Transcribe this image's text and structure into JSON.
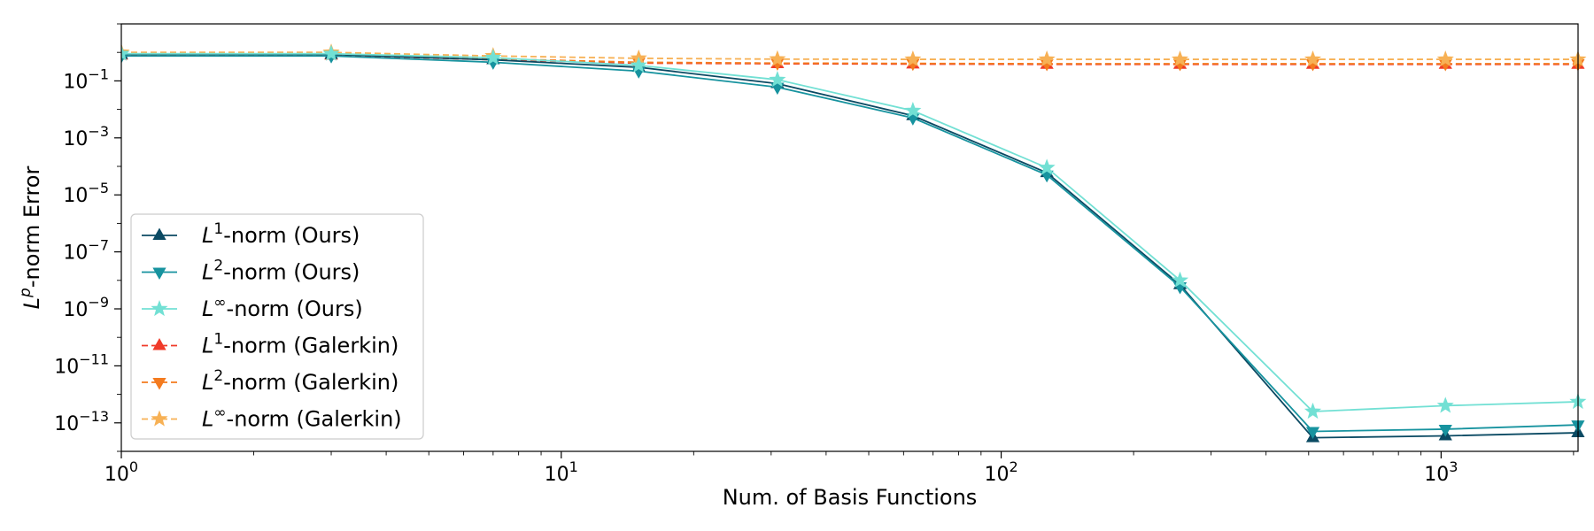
{
  "chart_data": {
    "type": "line",
    "title": "",
    "xlabel": "Num. of Basis Functions",
    "ylabel": {
      "base": "L",
      "sup": "p",
      "rest": "-norm Error"
    },
    "xscale": "log",
    "yscale": "log",
    "xlim": [
      1,
      2048
    ],
    "ylim": [
      1e-14,
      10
    ],
    "x_ticks": [
      {
        "value": 1,
        "base": "10",
        "exp": "0"
      },
      {
        "value": 10,
        "base": "10",
        "exp": "1"
      },
      {
        "value": 100,
        "base": "10",
        "exp": "2"
      },
      {
        "value": 1000,
        "base": "10",
        "exp": "3"
      }
    ],
    "y_ticks": [
      {
        "value": 0.1,
        "base": "10",
        "exp": "−1"
      },
      {
        "value": 0.001,
        "base": "10",
        "exp": "−3"
      },
      {
        "value": 1e-05,
        "base": "10",
        "exp": "−5"
      },
      {
        "value": 1e-07,
        "base": "10",
        "exp": "−7"
      },
      {
        "value": 1e-09,
        "base": "10",
        "exp": "−9"
      },
      {
        "value": 1e-11,
        "base": "10",
        "exp": "−11"
      },
      {
        "value": 1e-13,
        "base": "10",
        "exp": "−13"
      }
    ],
    "grid": false,
    "legend_position": "lower-left",
    "x": [
      1,
      3,
      7,
      15,
      31,
      63,
      127,
      255,
      511,
      1023,
      2047
    ],
    "series": [
      {
        "name": {
          "base": "L",
          "sup": "1",
          "rest": "-norm (Ours)"
        },
        "color": "#0b4a63",
        "marker": "triangle-up",
        "dash": "solid",
        "values": [
          0.85,
          0.85,
          0.55,
          0.3,
          0.08,
          0.006,
          6e-05,
          7e-09,
          3e-14,
          3.5e-14,
          4.5e-14
        ]
      },
      {
        "name": {
          "base": "L",
          "sup": "2",
          "rest": "-norm (Ours)"
        },
        "color": "#17939f",
        "marker": "triangle-down",
        "dash": "solid",
        "values": [
          0.75,
          0.75,
          0.45,
          0.22,
          0.06,
          0.005,
          5e-05,
          6e-09,
          5e-14,
          6e-14,
          8.5e-14
        ]
      },
      {
        "name": {
          "base": "L",
          "sup": "∞",
          "rest": "-norm (Ours)"
        },
        "color": "#72e0d4",
        "marker": "star",
        "dash": "solid",
        "values": [
          0.9,
          0.9,
          0.65,
          0.35,
          0.11,
          0.009,
          9e-05,
          1e-08,
          2.5e-13,
          4e-13,
          5.5e-13
        ]
      },
      {
        "name": {
          "base": "L",
          "sup": "1",
          "rest": "-norm (Galerkin)"
        },
        "color": "#f03b2a",
        "marker": "triangle-up",
        "dash": "dashed",
        "values": [
          0.8,
          0.8,
          0.55,
          0.42,
          0.4,
          0.39,
          0.38,
          0.38,
          0.38,
          0.38,
          0.38
        ]
      },
      {
        "name": {
          "base": "L",
          "sup": "2",
          "rest": "-norm (Galerkin)"
        },
        "color": "#f47b1f",
        "marker": "triangle-down",
        "dash": "dashed",
        "values": [
          0.85,
          0.85,
          0.6,
          0.45,
          0.42,
          0.41,
          0.4,
          0.4,
          0.4,
          0.4,
          0.4
        ]
      },
      {
        "name": {
          "base": "L",
          "sup": "∞",
          "rest": "-norm (Galerkin)"
        },
        "color": "#f7b155",
        "marker": "star",
        "dash": "dashed",
        "values": [
          1.0,
          1.0,
          0.75,
          0.62,
          0.58,
          0.57,
          0.57,
          0.57,
          0.57,
          0.57,
          0.57
        ]
      }
    ]
  }
}
